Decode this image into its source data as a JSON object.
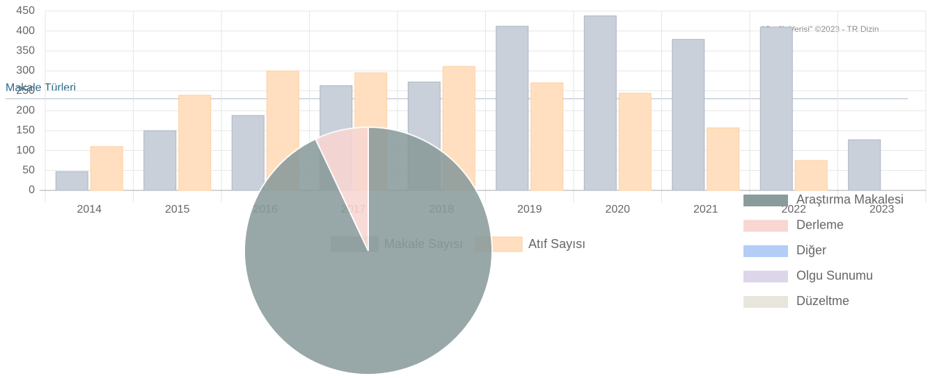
{
  "section_title": "Makale Türleri",
  "credit": "\"Grafik Verisi\" ©2023 - TR Dizin",
  "chart_data": [
    {
      "type": "bar",
      "categories": [
        "2014",
        "2015",
        "2016",
        "2017",
        "2018",
        "2019",
        "2020",
        "2021",
        "2022",
        "2023"
      ],
      "series": [
        {
          "name": "Makale Sayısı",
          "color": "#c9d0da",
          "border": "#aab4c3",
          "values": [
            47,
            150,
            188,
            263,
            272,
            412,
            438,
            379,
            410,
            127
          ]
        },
        {
          "name": "Atıf Sayısı",
          "color": "#ffdfc0",
          "border": "#ffcf9f",
          "values": [
            110,
            239,
            300,
            295,
            311,
            270,
            244,
            157,
            75,
            0
          ]
        }
      ],
      "ylim": [
        0,
        450
      ],
      "yticks": [
        0,
        50,
        100,
        150,
        200,
        250,
        300,
        350,
        400,
        450
      ],
      "grid": true,
      "legend": "bottom"
    },
    {
      "type": "pie",
      "categories": [
        "Araştırma Makalesi",
        "Derleme",
        "Diğer",
        "Olgu Sunumu",
        "Düzeltme"
      ],
      "values": [
        93,
        7,
        0,
        0,
        0
      ],
      "colors": [
        "#8a9b9b",
        "#f8d6d2",
        "#b3cdf7",
        "#ddd5e8",
        "#e8e6dc"
      ],
      "legend": "right"
    }
  ]
}
